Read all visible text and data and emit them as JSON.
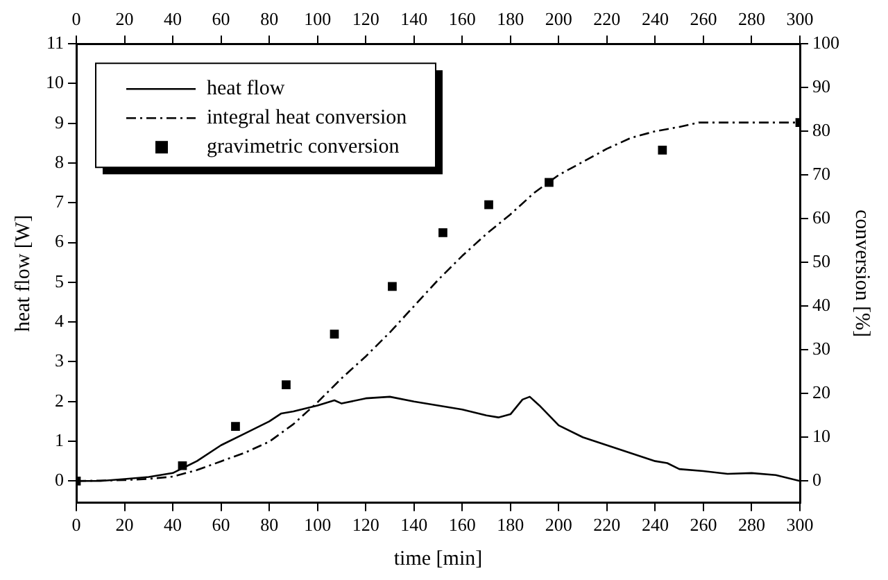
{
  "chart_data": {
    "type": "line",
    "xlabel": "time [min]",
    "ylabel": "heat flow [W]",
    "y2label": "conversion [%]",
    "xlim": [
      0,
      300
    ],
    "xticks": [
      0,
      20,
      40,
      60,
      80,
      100,
      120,
      140,
      160,
      180,
      200,
      220,
      240,
      260,
      280,
      300
    ],
    "x2lim": [
      0,
      300
    ],
    "x2ticks": [
      0,
      20,
      40,
      60,
      80,
      100,
      120,
      140,
      160,
      180,
      200,
      220,
      240,
      260,
      280,
      300
    ],
    "ylim": [
      -0.55,
      11
    ],
    "yticks": [
      0,
      1,
      2,
      3,
      4,
      5,
      6,
      7,
      8,
      9,
      10,
      11
    ],
    "y2lim": [
      -5,
      100
    ],
    "y2ticks": [
      0,
      10,
      20,
      30,
      40,
      50,
      60,
      70,
      80,
      90,
      100
    ],
    "grid": false,
    "legend": "top left",
    "series": [
      {
        "name": "heat flow",
        "color": "#000000",
        "line_style": "solid",
        "marker": "none",
        "x": [
          0,
          10,
          20,
          30,
          40,
          45,
          50,
          60,
          70,
          80,
          85,
          90,
          100,
          107,
          110,
          120,
          130,
          140,
          150,
          160,
          170,
          175,
          180,
          185,
          188,
          192,
          200,
          210,
          215,
          220,
          230,
          240,
          245,
          250,
          260,
          270,
          280,
          290,
          300
        ],
        "values": [
          0,
          0,
          0.05,
          0.1,
          0.2,
          0.35,
          0.5,
          0.9,
          1.2,
          1.5,
          1.7,
          1.75,
          1.9,
          2.03,
          1.95,
          2.08,
          2.12,
          2.0,
          1.9,
          1.8,
          1.65,
          1.6,
          1.68,
          2.05,
          2.12,
          1.9,
          1.4,
          1.1,
          1.0,
          0.9,
          0.7,
          0.5,
          0.45,
          0.3,
          0.25,
          0.18,
          0.2,
          0.15,
          0
        ]
      },
      {
        "name": "integral heat conversion",
        "type": "line",
        "axis": "y2",
        "color": "#000000",
        "line_style": "dashed",
        "marker": "none",
        "x": [
          0,
          20,
          30,
          40,
          50,
          60,
          70,
          80,
          90,
          100,
          110,
          120,
          130,
          140,
          150,
          160,
          170,
          180,
          190,
          200,
          210,
          220,
          230,
          240,
          250,
          258,
          300
        ],
        "values": [
          0,
          0.2,
          0.5,
          1,
          2.5,
          4.5,
          6.5,
          9,
          13,
          18,
          23.5,
          28.5,
          34,
          40,
          46,
          51.5,
          56.5,
          61,
          66,
          70,
          73,
          76,
          78.5,
          80,
          81,
          82,
          82
        ]
      },
      {
        "name": "gravimetric conversion",
        "type": "scatter",
        "axis": "y2",
        "color": "#000000",
        "marker": "square",
        "x": [
          0,
          44,
          66,
          87,
          107,
          131,
          152,
          171,
          196,
          243,
          300
        ],
        "values": [
          0,
          3.5,
          12.5,
          22,
          33.6,
          44.5,
          56.8,
          63.2,
          68.3,
          75.7,
          82
        ]
      }
    ]
  }
}
